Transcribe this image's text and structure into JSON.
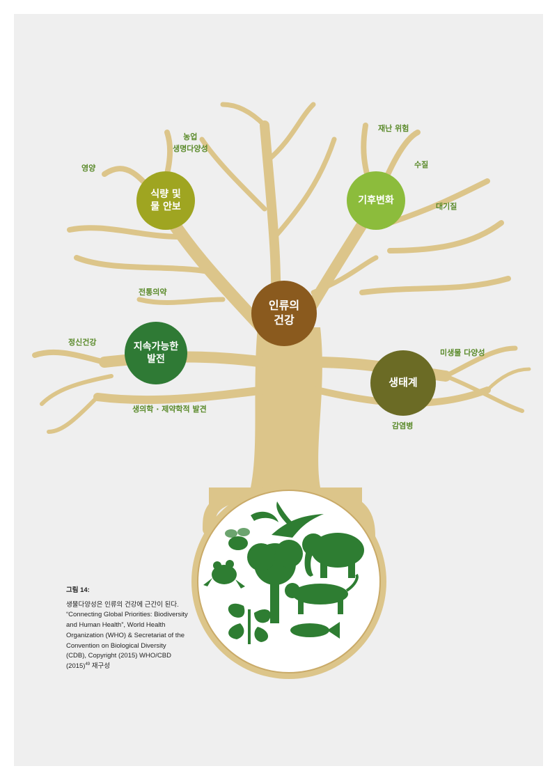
{
  "colors": {
    "trunk": "#dcc58a",
    "ring_border": "#c9aa68",
    "silhouette": "#2e7d32",
    "label_text": "#5a8a2a",
    "node_food": "#9fa521",
    "node_climate": "#8cbc3c",
    "node_center": "#8a5a1e",
    "node_sustain": "#2f7a35",
    "node_eco": "#6b6b25"
  },
  "nodes": {
    "food": "식량 및\n물 안보",
    "climate": "기후변화",
    "center": "인류의\n건강",
    "sustain": "지속가능한\n발전",
    "eco": "생태계"
  },
  "labels": {
    "agriculture": "농업\n생명다양성",
    "nutrition": "영양",
    "disaster": "재난 위험",
    "water_quality": "수질",
    "air_quality": "대기질",
    "traditional_medicine": "전통의약",
    "mental_health": "정신건강",
    "biomedical": "생의학 · 제약학적 발견",
    "microbial": "미생물 다양성",
    "infectious": "감염병"
  },
  "caption": {
    "title": "그림 14:",
    "line1": "생물다양성은 인류의 건강에 근간이 된다. “Connecting Global Priorities: Biodiversity and Human Health”, World Health Organization (WHO) & Secretariat of the Convention on Biological Diversity (CDB), Copyright (2015) WHO/CBD (2015)",
    "ref": "49",
    "line2": " 재구성"
  },
  "icons": [
    "tree-icon",
    "elephant-icon",
    "bird-icon",
    "tiger-icon",
    "fish-icon",
    "frog-icon",
    "bee-icon",
    "shrimp-icon",
    "plant-icon"
  ]
}
